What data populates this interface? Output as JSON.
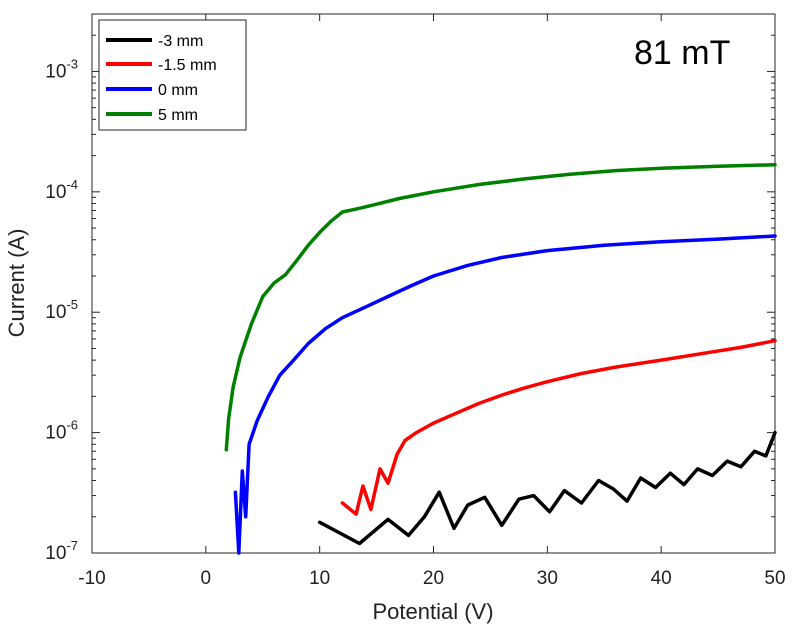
{
  "chart_data": {
    "type": "line",
    "title": "",
    "annotation": "81 mT",
    "xlabel": "Potential (V)",
    "ylabel": "Current (A)",
    "xlim": [
      -10,
      50
    ],
    "ylim": [
      1e-07,
      0.003
    ],
    "yscale": "log",
    "grid": false,
    "legend_position": "top-left",
    "x_ticks": [
      {
        "value": -10,
        "label": "-10"
      },
      {
        "value": 0,
        "label": "0"
      },
      {
        "value": 10,
        "label": "10"
      },
      {
        "value": 20,
        "label": "20"
      },
      {
        "value": 30,
        "label": "30"
      },
      {
        "value": 40,
        "label": "40"
      },
      {
        "value": 50,
        "label": "50"
      }
    ],
    "y_ticks": [
      {
        "value": 1e-07,
        "mantissa": "10",
        "exponent": "-7"
      },
      {
        "value": 1e-06,
        "mantissa": "10",
        "exponent": "-6"
      },
      {
        "value": 1e-05,
        "mantissa": "10",
        "exponent": "-5"
      },
      {
        "value": 0.0001,
        "mantissa": "10",
        "exponent": "-4"
      },
      {
        "value": 0.001,
        "mantissa": "10",
        "exponent": "-3"
      }
    ],
    "series": [
      {
        "name": "-3 mm",
        "color": "#000000",
        "points": [
          [
            10.0,
            1.8e-07
          ],
          [
            13.5,
            1.2e-07
          ],
          [
            16.0,
            1.9e-07
          ],
          [
            17.8,
            1.4e-07
          ],
          [
            19.2,
            2e-07
          ],
          [
            20.5,
            3.2e-07
          ],
          [
            21.8,
            1.6e-07
          ],
          [
            23.0,
            2.5e-07
          ],
          [
            24.5,
            2.9e-07
          ],
          [
            26.0,
            1.7e-07
          ],
          [
            27.5,
            2.8e-07
          ],
          [
            28.8,
            3e-07
          ],
          [
            30.2,
            2.2e-07
          ],
          [
            31.5,
            3.3e-07
          ],
          [
            33.0,
            2.6e-07
          ],
          [
            34.5,
            4e-07
          ],
          [
            35.8,
            3.4e-07
          ],
          [
            37.0,
            2.7e-07
          ],
          [
            38.2,
            4.2e-07
          ],
          [
            39.5,
            3.5e-07
          ],
          [
            40.8,
            4.6e-07
          ],
          [
            42.0,
            3.7e-07
          ],
          [
            43.2,
            5e-07
          ],
          [
            44.5,
            4.4e-07
          ],
          [
            45.8,
            5.8e-07
          ],
          [
            47.0,
            5.2e-07
          ],
          [
            48.2,
            7e-07
          ],
          [
            49.2,
            6.4e-07
          ],
          [
            50.0,
            1e-06
          ]
        ]
      },
      {
        "name": "-1.5 mm",
        "color": "#ff0000",
        "points": [
          [
            12.0,
            2.6e-07
          ],
          [
            13.2,
            2.1e-07
          ],
          [
            13.8,
            3.6e-07
          ],
          [
            14.5,
            2.3e-07
          ],
          [
            15.3,
            5e-07
          ],
          [
            16.0,
            3.8e-07
          ],
          [
            16.8,
            6.6e-07
          ],
          [
            17.5,
            8.6e-07
          ],
          [
            18.5,
            1e-06
          ],
          [
            20.0,
            1.2e-06
          ],
          [
            22.0,
            1.45e-06
          ],
          [
            24.0,
            1.75e-06
          ],
          [
            26.0,
            2.05e-06
          ],
          [
            28.0,
            2.35e-06
          ],
          [
            30.0,
            2.65e-06
          ],
          [
            33.0,
            3.1e-06
          ],
          [
            36.0,
            3.5e-06
          ],
          [
            40.0,
            4e-06
          ],
          [
            44.0,
            4.6e-06
          ],
          [
            47.0,
            5.1e-06
          ],
          [
            50.0,
            5.8e-06
          ]
        ]
      },
      {
        "name": "0 mm",
        "color": "#0000ff",
        "points": [
          [
            2.6,
            3.2e-07
          ],
          [
            2.9,
            1e-07
          ],
          [
            3.2,
            4.8e-07
          ],
          [
            3.5,
            2e-07
          ],
          [
            3.8,
            8e-07
          ],
          [
            4.5,
            1.25e-06
          ],
          [
            5.5,
            2e-06
          ],
          [
            6.5,
            3e-06
          ],
          [
            7.5,
            3.8e-06
          ],
          [
            9.0,
            5.5e-06
          ],
          [
            10.5,
            7.3e-06
          ],
          [
            12.0,
            9e-06
          ],
          [
            14.0,
            1.1e-05
          ],
          [
            16.0,
            1.35e-05
          ],
          [
            18.0,
            1.65e-05
          ],
          [
            20.0,
            2e-05
          ],
          [
            23.0,
            2.45e-05
          ],
          [
            26.0,
            2.85e-05
          ],
          [
            30.0,
            3.25e-05
          ],
          [
            35.0,
            3.6e-05
          ],
          [
            40.0,
            3.85e-05
          ],
          [
            45.0,
            4.05e-05
          ],
          [
            50.0,
            4.3e-05
          ]
        ]
      },
      {
        "name": "5 mm",
        "color": "#008000",
        "points": [
          [
            1.8,
            7.2e-07
          ],
          [
            2.0,
            1.3e-06
          ],
          [
            2.4,
            2.4e-06
          ],
          [
            3.0,
            4.2e-06
          ],
          [
            4.0,
            8e-06
          ],
          [
            5.0,
            1.35e-05
          ],
          [
            6.0,
            1.75e-05
          ],
          [
            7.0,
            2.05e-05
          ],
          [
            8.0,
            2.7e-05
          ],
          [
            9.0,
            3.6e-05
          ],
          [
            10.0,
            4.6e-05
          ],
          [
            11.0,
            5.7e-05
          ],
          [
            12.0,
            6.8e-05
          ],
          [
            13.5,
            7.3e-05
          ],
          [
            15.0,
            7.9e-05
          ],
          [
            17.0,
            8.8e-05
          ],
          [
            20.0,
            0.0001
          ],
          [
            24.0,
            0.000115
          ],
          [
            28.0,
            0.000128
          ],
          [
            32.0,
            0.00014
          ],
          [
            36.0,
            0.00015
          ],
          [
            40.0,
            0.000157
          ],
          [
            45.0,
            0.000163
          ],
          [
            50.0,
            0.000168
          ]
        ]
      }
    ]
  }
}
